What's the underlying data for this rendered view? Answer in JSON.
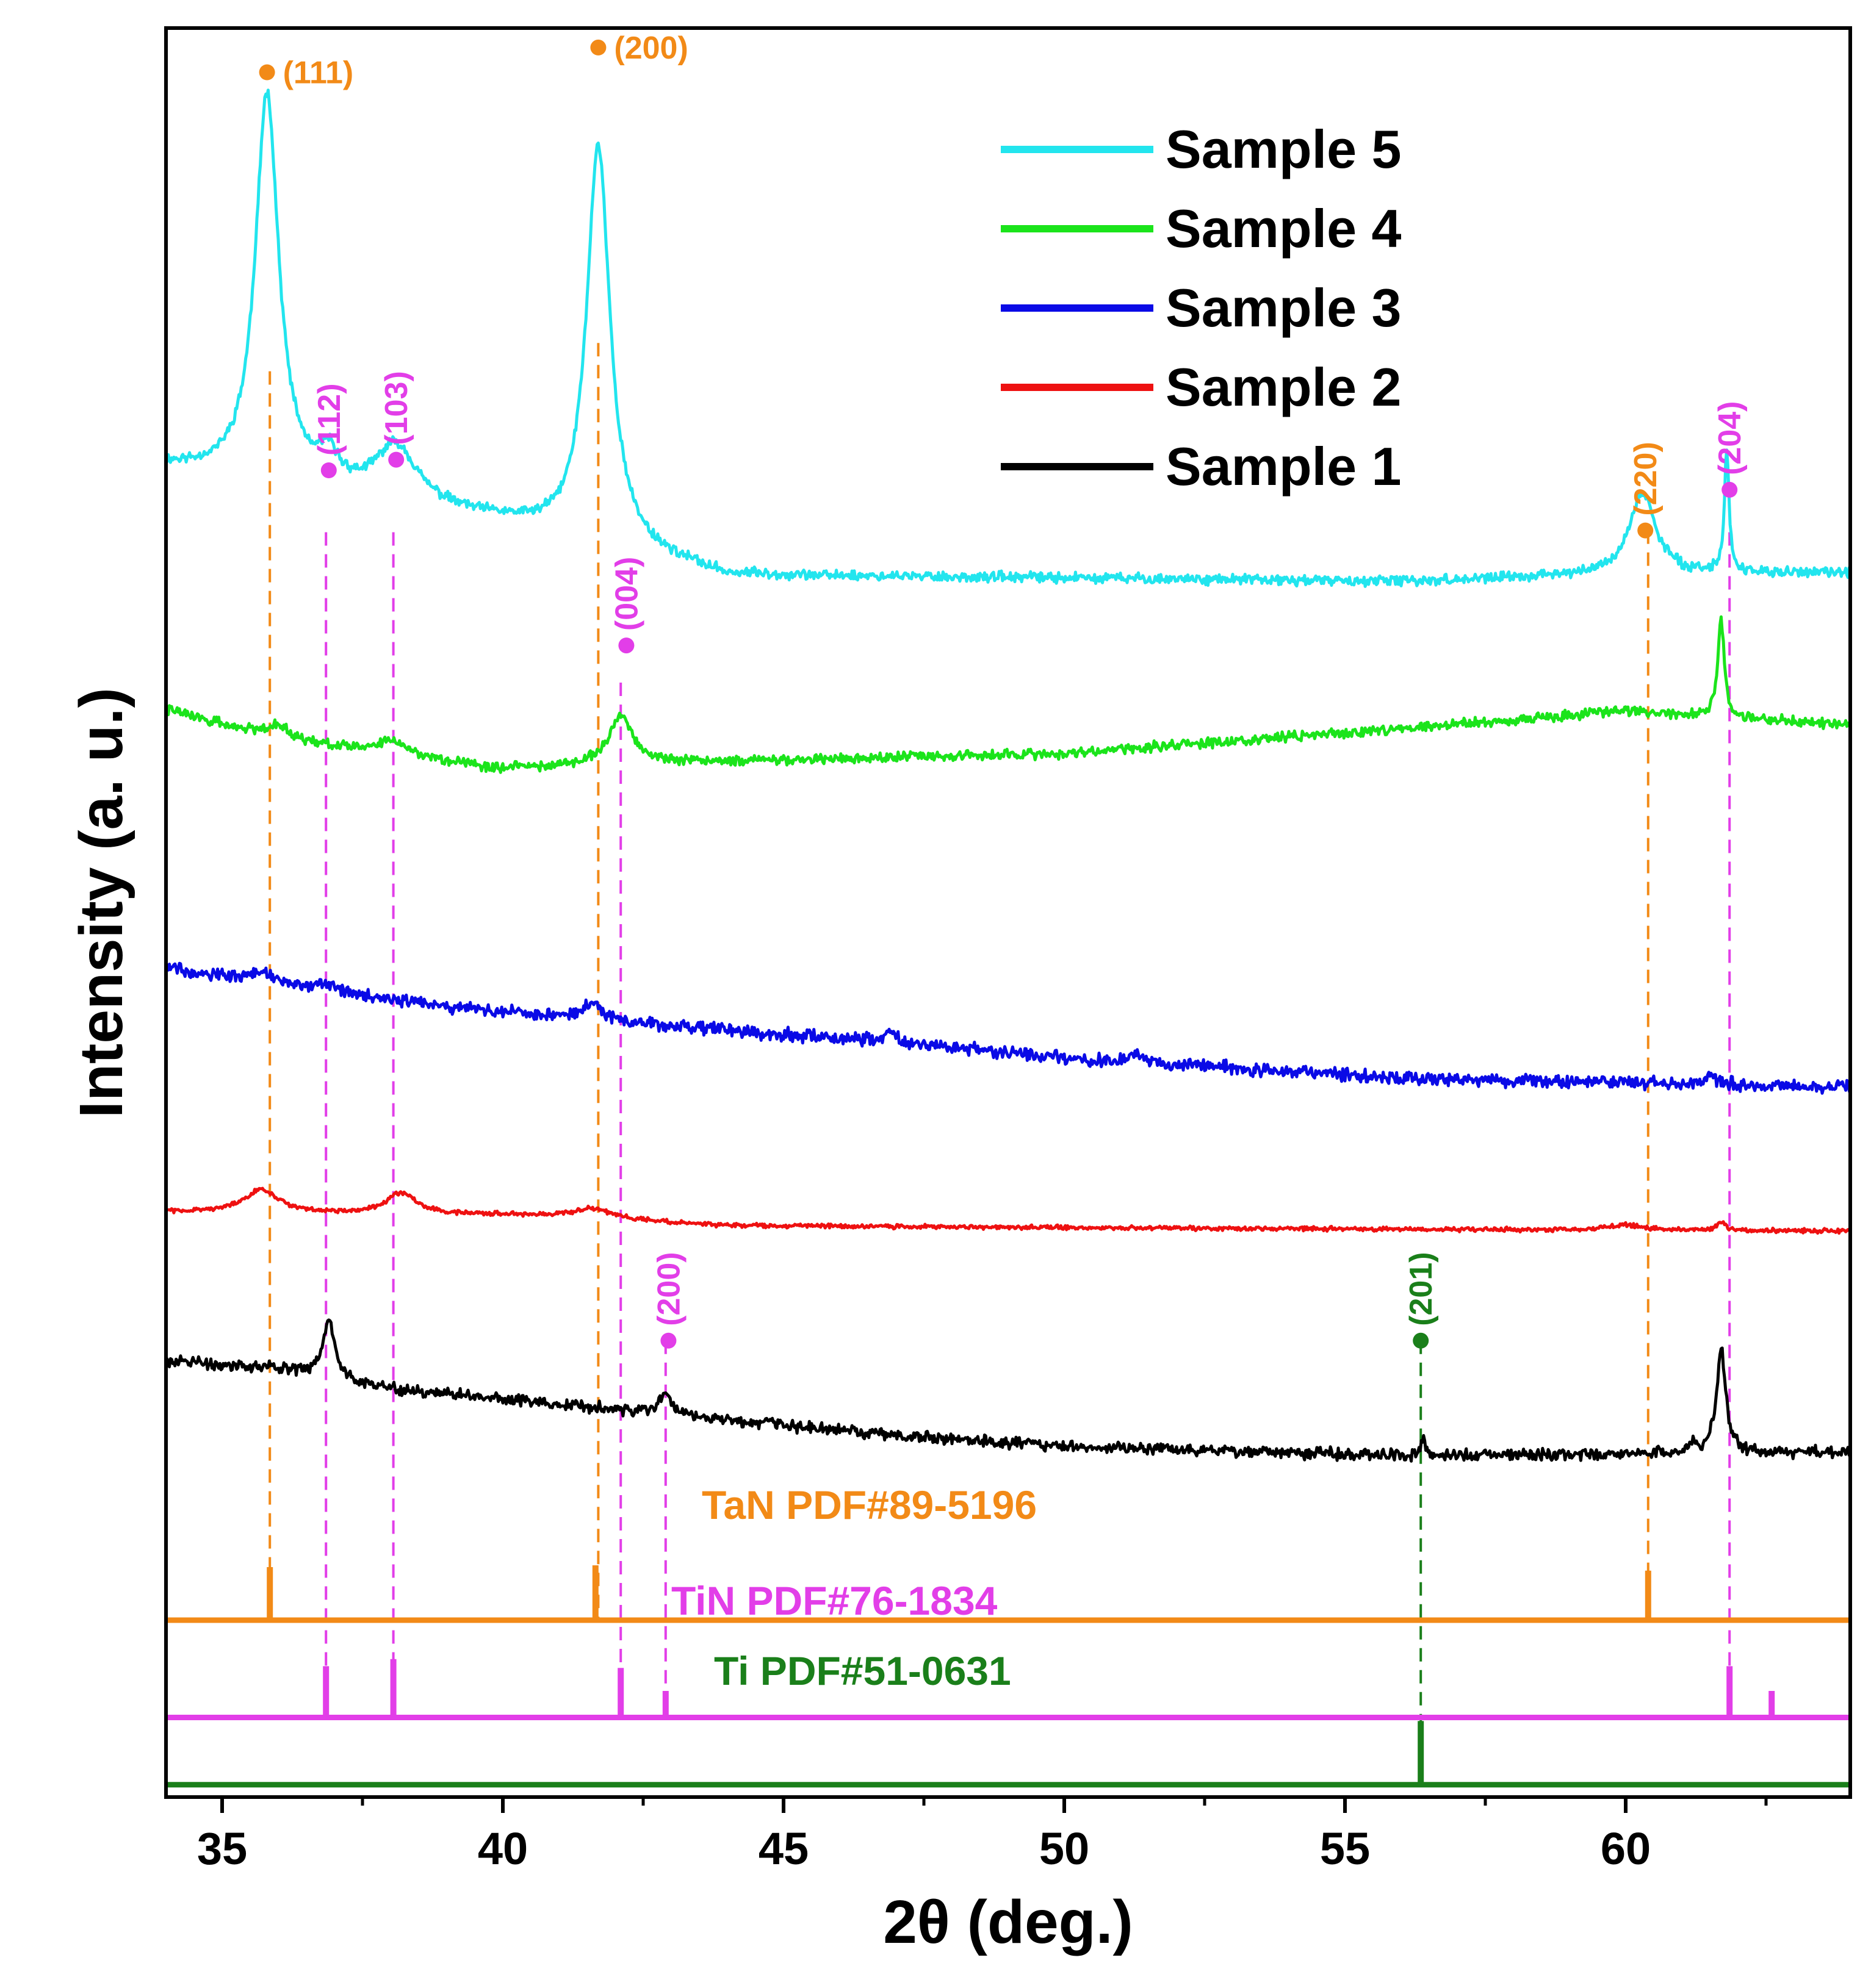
{
  "chart_data": {
    "type": "line",
    "xlabel": "2θ (deg.)",
    "ylabel": "Intensity (a. u.)",
    "xlim": [
      34,
      64
    ],
    "xticks": [
      "35",
      "40",
      "45",
      "50",
      "55",
      "60"
    ],
    "y_units": "arbitrary (offset stacked traces, 0–100)",
    "ylim": [
      0,
      100
    ],
    "colors": {
      "sample5": "#22e5ee",
      "sample4": "#1be41b",
      "sample3": "#0a0ae6",
      "sample2": "#ee1111",
      "sample1": "#000000",
      "tan": "#f28a17",
      "tin": "#e23ee8",
      "ti": "#1a7f1a"
    },
    "legend": {
      "position": "top-right",
      "entries": [
        {
          "label": "Sample 5",
          "series": "sample5"
        },
        {
          "label": "Sample 4",
          "series": "sample4"
        },
        {
          "label": "Sample 3",
          "series": "sample3"
        },
        {
          "label": "Sample 2",
          "series": "sample2"
        },
        {
          "label": "Sample 1",
          "series": "sample1"
        }
      ]
    },
    "series": [
      {
        "id": "sample5",
        "name": "Sample 5",
        "baseline": [
          [
            34,
            75.2
          ],
          [
            40,
            72.0
          ],
          [
            44,
            69.0
          ],
          [
            50,
            68.9
          ],
          [
            56,
            68.7
          ],
          [
            60,
            69.1
          ],
          [
            64,
            69.2
          ]
        ],
        "peaks": [
          [
            35.8,
            22.0,
            0.25
          ],
          [
            36.9,
            1.6,
            0.2
          ],
          [
            38.1,
            3.2,
            0.45
          ],
          [
            41.7,
            22.6,
            0.25
          ],
          [
            60.3,
            4.6,
            0.28
          ],
          [
            61.8,
            6.8,
            0.05
          ]
        ],
        "noise": 0.35,
        "seed": 11
      },
      {
        "id": "sample4",
        "name": "Sample 4",
        "baseline": [
          [
            34,
            61.5
          ],
          [
            36,
            59.7
          ],
          [
            40,
            58.1
          ],
          [
            42,
            58.4
          ],
          [
            50,
            59.0
          ],
          [
            56,
            60.4
          ],
          [
            60,
            61.4
          ],
          [
            64,
            60.6
          ]
        ],
        "peaks": [
          [
            36.0,
            0.9,
            0.3
          ],
          [
            38.0,
            0.8,
            0.35
          ],
          [
            42.1,
            2.8,
            0.25
          ],
          [
            61.7,
            5.4,
            0.07
          ]
        ],
        "noise": 0.35,
        "seed": 22
      },
      {
        "id": "sample3",
        "name": "Sample 3",
        "baseline": [
          [
            34,
            46.9
          ],
          [
            38,
            45.0
          ],
          [
            42,
            43.8
          ],
          [
            46,
            42.9
          ],
          [
            50,
            41.8
          ],
          [
            56,
            40.6
          ],
          [
            60,
            40.4
          ],
          [
            64,
            40.1
          ]
        ],
        "peaks": [
          [
            35.7,
            0.6,
            0.2
          ],
          [
            36.8,
            0.5,
            0.25
          ],
          [
            41.6,
            1.0,
            0.2
          ],
          [
            46.9,
            0.6,
            0.15
          ],
          [
            51.3,
            0.5,
            0.1
          ],
          [
            61.5,
            0.6,
            0.1
          ]
        ],
        "noise": 0.45,
        "seed": 33
      },
      {
        "id": "sample2",
        "name": "Sample 2",
        "baseline": [
          [
            34,
            33.1
          ],
          [
            40,
            32.9
          ],
          [
            44,
            32.3
          ],
          [
            50,
            32.2
          ],
          [
            56,
            32.1
          ],
          [
            64,
            32.0
          ]
        ],
        "peaks": [
          [
            35.7,
            1.3,
            0.35
          ],
          [
            38.2,
            1.2,
            0.3
          ],
          [
            41.6,
            0.6,
            0.45
          ],
          [
            60.0,
            0.3,
            0.35
          ],
          [
            61.7,
            0.5,
            0.08
          ]
        ],
        "noise": 0.15,
        "seed": 44
      },
      {
        "id": "sample1",
        "name": "Sample 1",
        "baseline": [
          [
            34,
            24.7
          ],
          [
            36,
            24.2
          ],
          [
            38,
            23.1
          ],
          [
            42,
            21.9
          ],
          [
            46,
            20.7
          ],
          [
            50,
            19.8
          ],
          [
            56,
            19.3
          ],
          [
            60,
            19.4
          ],
          [
            64,
            19.5
          ]
        ],
        "peaks": [
          [
            36.9,
            3.4,
            0.12
          ],
          [
            42.9,
            1.3,
            0.12
          ],
          [
            56.4,
            1.2,
            0.04
          ],
          [
            61.7,
            5.8,
            0.1
          ],
          [
            61.2,
            0.6,
            0.06
          ]
        ],
        "noise": 0.4,
        "seed": 55
      }
    ],
    "reference_patterns": [
      {
        "id": "tan",
        "name": "TaN PDF#89-5196",
        "baseline_y": 10.0,
        "peaks": [
          [
            35.85,
            3.0
          ],
          [
            41.65,
            3.1
          ],
          [
            60.4,
            2.8
          ]
        ]
      },
      {
        "id": "tin",
        "name": "TiN PDF#76-1834",
        "baseline_y": 4.5,
        "peaks": [
          [
            36.85,
            2.9
          ],
          [
            38.05,
            3.3
          ],
          [
            42.1,
            2.8
          ],
          [
            42.9,
            1.5
          ],
          [
            61.85,
            2.9
          ],
          [
            62.6,
            1.5
          ]
        ]
      },
      {
        "id": "ti",
        "name": "Ti PDF#51-0631",
        "baseline_y": 0.7,
        "peaks": [
          [
            56.35,
            3.6
          ]
        ]
      }
    ],
    "guide_lines": [
      {
        "x": 35.85,
        "from_y": 80.6,
        "to_y": 10.0,
        "color": "tan"
      },
      {
        "x": 36.85,
        "from_y": 71.5,
        "to_y": 4.5,
        "color": "tin"
      },
      {
        "x": 38.05,
        "from_y": 71.5,
        "to_y": 4.5,
        "color": "tin"
      },
      {
        "x": 41.7,
        "from_y": 82.2,
        "to_y": 10.0,
        "color": "tan"
      },
      {
        "x": 42.1,
        "from_y": 63.0,
        "to_y": 4.5,
        "color": "tin"
      },
      {
        "x": 42.9,
        "from_y": 25.8,
        "to_y": 4.5,
        "color": "tin"
      },
      {
        "x": 56.35,
        "from_y": 25.8,
        "to_y": 0.7,
        "color": "ti"
      },
      {
        "x": 60.4,
        "from_y": 71.6,
        "to_y": 10.0,
        "color": "tan"
      },
      {
        "x": 61.85,
        "from_y": 71.5,
        "to_y": 4.5,
        "color": "tin"
      }
    ],
    "annotations": [
      {
        "hkl": "(111)",
        "x": 35.8,
        "y": 97.5,
        "phase": "tan",
        "orient": "horizontal"
      },
      {
        "hkl": "(200)",
        "x": 41.7,
        "y": 98.9,
        "phase": "tan",
        "orient": "horizontal"
      },
      {
        "hkl": "(112)",
        "x": 36.9,
        "y": 75.0,
        "phase": "tin",
        "orient": "vertical"
      },
      {
        "hkl": "(103)",
        "x": 38.1,
        "y": 75.6,
        "phase": "tin",
        "orient": "vertical"
      },
      {
        "hkl": "(004)",
        "x": 42.2,
        "y": 65.1,
        "phase": "tin",
        "orient": "vertical"
      },
      {
        "hkl": "(200)",
        "x": 42.95,
        "y": 25.8,
        "phase": "tin",
        "orient": "vertical"
      },
      {
        "hkl": "(201)",
        "x": 56.35,
        "y": 25.8,
        "phase": "ti",
        "orient": "vertical"
      },
      {
        "hkl": "(220)",
        "x": 60.35,
        "y": 71.6,
        "phase": "tan",
        "orient": "vertical"
      },
      {
        "hkl": "(204)",
        "x": 61.85,
        "y": 73.9,
        "phase": "tin",
        "orient": "vertical"
      }
    ]
  }
}
